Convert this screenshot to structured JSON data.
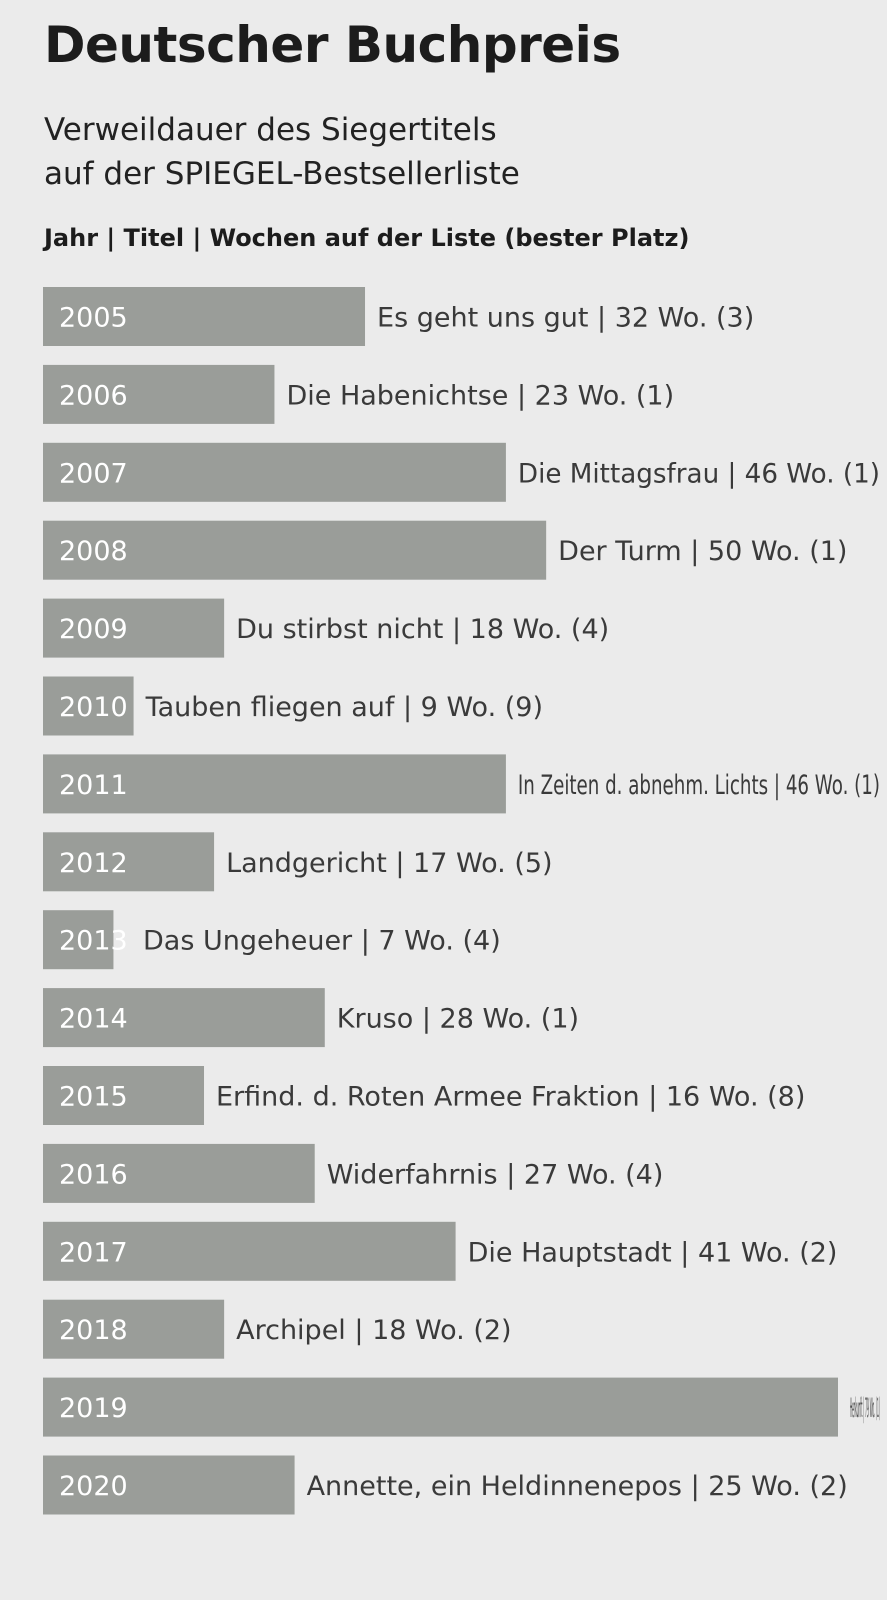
{
  "header": {
    "title": "Deutscher Buchpreis",
    "subtitle_line1": "Verweildauer des Siegertitels",
    "subtitle_line2": "auf der SPIEGEL-Bestsellerliste",
    "column_header": "Jahr | Titel | Wochen auf der Liste (bester Platz)"
  },
  "colors": {
    "background": "#ebebeb",
    "bar": "#9a9d99",
    "bar_text": "#ffffff",
    "label_text": "#3a3a3a"
  },
  "chart_data": {
    "type": "bar",
    "orientation": "horizontal",
    "title": "Deutscher Buchpreis",
    "xlim": [
      0,
      79
    ],
    "categories": [
      "2005",
      "2006",
      "2007",
      "2008",
      "2009",
      "2010",
      "2011",
      "2012",
      "2013",
      "2014",
      "2015",
      "2016",
      "2017",
      "2018",
      "2019",
      "2020"
    ],
    "values": [
      32,
      23,
      46,
      50,
      18,
      9,
      46,
      17,
      7,
      28,
      16,
      27,
      41,
      18,
      79,
      25
    ],
    "labels": [
      "Es geht uns gut | 32 Wo. (3)",
      "Die Habenichtse | 23 Wo. (1)",
      "Die Mittagsfrau | 46 Wo. (1)",
      "Der Turm | 50 Wo. (1)",
      "Du stirbst nicht | 18 Wo. (4)",
      "Tauben fliegen auf | 9 Wo. (9)",
      "In Zeiten d. abnehm. Lichts | 46 Wo. (1)",
      "Landgericht | 17 Wo. (5)",
      "Das Ungeheuer | 7 Wo. (4)",
      "Kruso | 28 Wo. (1)",
      "Erfind. d. Roten Armee Fraktion | 16 Wo. (8)",
      "Widerfahrnis | 27 Wo. (4)",
      "Die Hauptstadt | 41 Wo. (2)",
      "Archipel | 18 Wo. (2)",
      "Herkunft | 79 Wo. (1)",
      "Annette, ein Heldinnenepos | 25 Wo. (2)"
    ],
    "best_rank": [
      3,
      1,
      1,
      1,
      4,
      9,
      1,
      5,
      4,
      1,
      8,
      4,
      2,
      2,
      1,
      2
    ]
  }
}
